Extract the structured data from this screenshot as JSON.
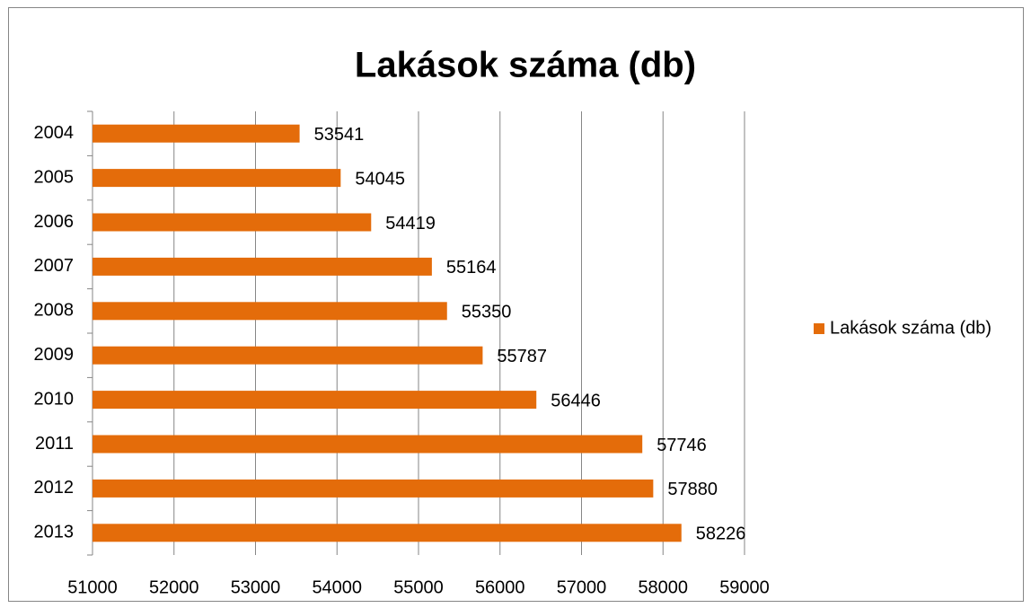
{
  "chart_data": {
    "type": "bar",
    "orientation": "horizontal",
    "title": "Lakások száma (db)",
    "categories": [
      "2004",
      "2005",
      "2006",
      "2007",
      "2008",
      "2009",
      "2010",
      "2011",
      "2012",
      "2013"
    ],
    "series": [
      {
        "name": "Lakások száma (db)",
        "color": "#e46c0a",
        "values": [
          53541,
          54045,
          54419,
          55164,
          55350,
          55787,
          56446,
          57746,
          57880,
          58226
        ]
      }
    ],
    "xlim": [
      51000,
      59000
    ],
    "xticks": [
      51000,
      52000,
      53000,
      54000,
      55000,
      56000,
      57000,
      58000,
      59000
    ],
    "grid": true,
    "legend": "right"
  }
}
